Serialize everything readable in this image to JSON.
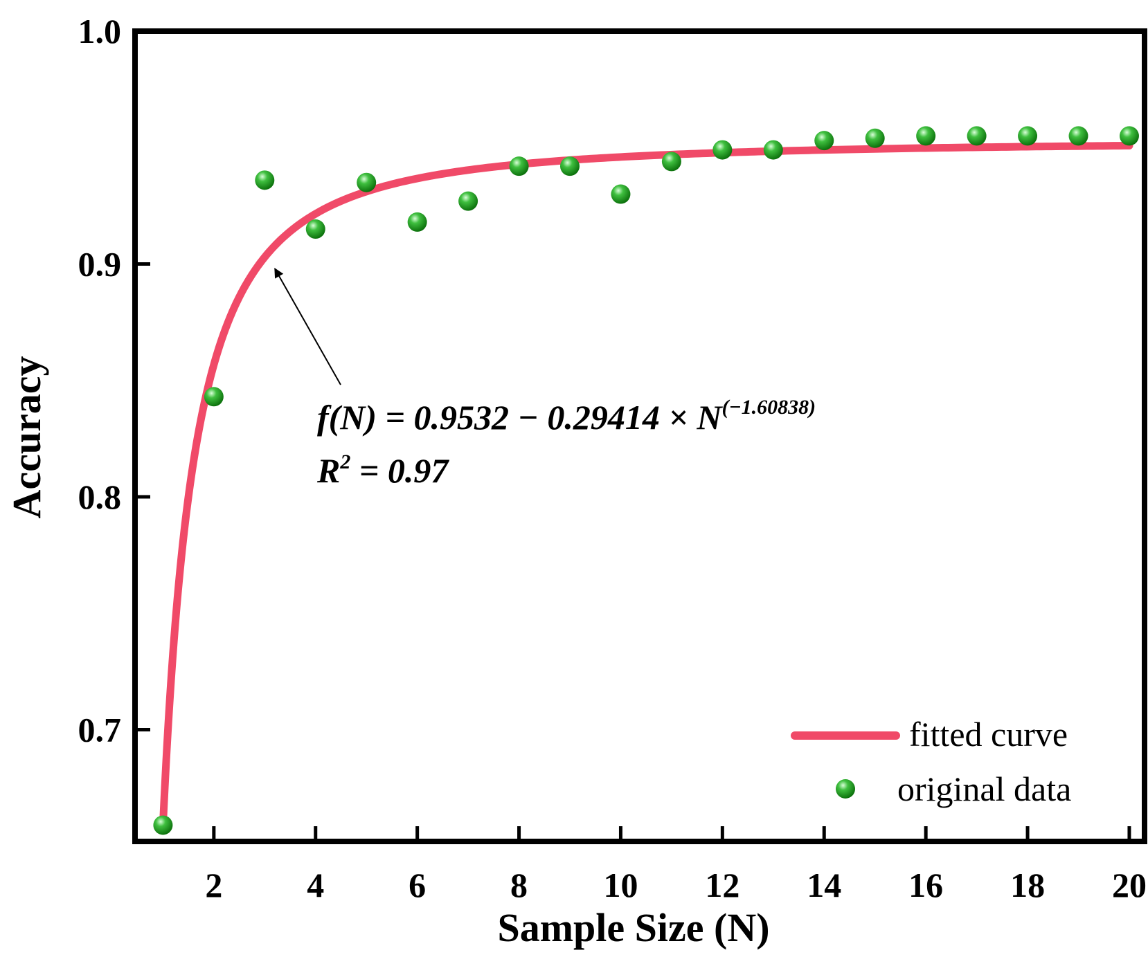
{
  "chart_data": {
    "type": "scatter",
    "xlabel": "Sample Size (N)",
    "ylabel": "Accuracy",
    "xlim": [
      0.45,
      20.3
    ],
    "ylim": [
      0.652,
      1.0
    ],
    "xticks": [
      2,
      4,
      6,
      8,
      10,
      12,
      14,
      16,
      18,
      20
    ],
    "xtick_labels": [
      "2",
      "4",
      "6",
      "8",
      "10",
      "12",
      "14",
      "16",
      "18",
      "20"
    ],
    "yticks": [
      0.7,
      0.8,
      0.9,
      1.0
    ],
    "ytick_labels": [
      "0.7",
      "0.8",
      "0.9",
      "1.0"
    ],
    "legend_position": "bottom-right",
    "series": [
      {
        "name": "original data",
        "kind": "scatter",
        "color": "#1a9a1a",
        "x": [
          1,
          2,
          3,
          4,
          5,
          6,
          7,
          8,
          9,
          10,
          11,
          12,
          13,
          14,
          15,
          16,
          17,
          18,
          19,
          20
        ],
        "y": [
          0.659,
          0.843,
          0.936,
          0.915,
          0.935,
          0.918,
          0.927,
          0.942,
          0.942,
          0.93,
          0.944,
          0.949,
          0.949,
          0.953,
          0.954,
          0.955,
          0.955,
          0.955,
          0.955,
          0.955
        ]
      },
      {
        "name": "fitted curve",
        "kind": "line",
        "color": "#f04a68",
        "function": {
          "a": 0.9532,
          "b": 0.29414,
          "c": -1.60838,
          "x_range": [
            1,
            20
          ]
        }
      }
    ],
    "annotation": {
      "equation_main": "f(N) = 0.9532 − 0.29414 × N",
      "equation_exponent": "(−1.60838)",
      "r2_prefix": "R",
      "r2_sup": "2",
      "r2_suffix": " = 0.97",
      "arrow_target": {
        "x": 3.2,
        "y": 0.898
      }
    }
  }
}
